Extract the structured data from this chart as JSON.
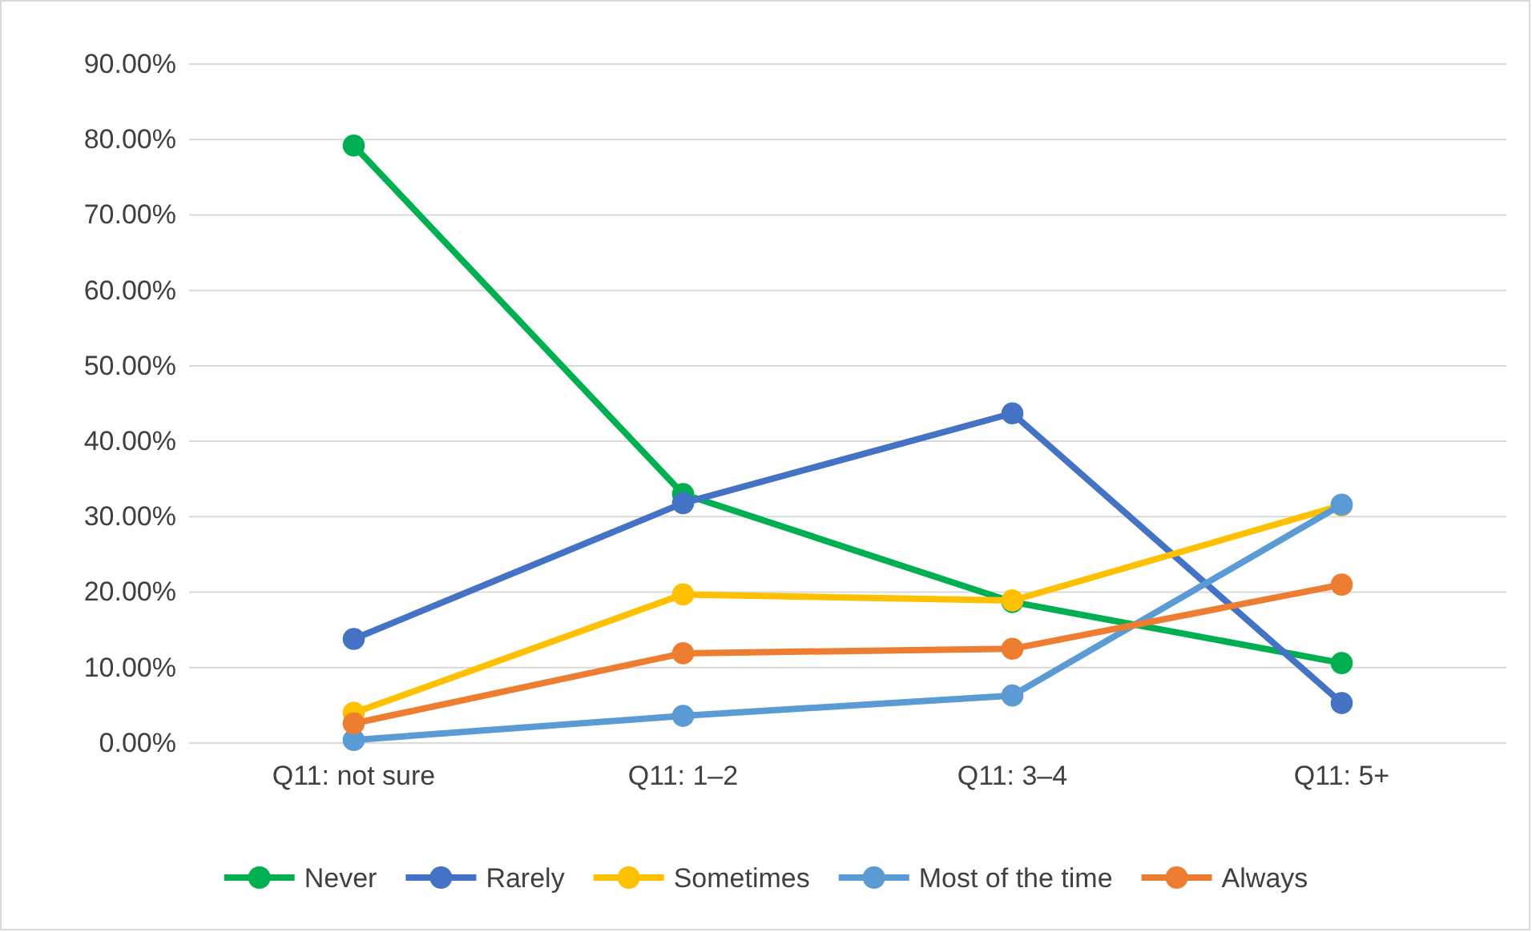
{
  "chart_data": {
    "type": "line",
    "categories": [
      "Q11: not sure",
      "Q11: 1–2",
      "Q11: 3–4",
      "Q11: 5+"
    ],
    "series": [
      {
        "name": "Never",
        "color": "#00b050",
        "values": [
          79.2,
          33,
          18.7,
          10.6
        ]
      },
      {
        "name": "Rarely",
        "color": "#4472c4",
        "values": [
          13.8,
          31.8,
          43.7,
          5.3
        ]
      },
      {
        "name": "Sometimes",
        "color": "#ffc000",
        "values": [
          4,
          19.7,
          18.9,
          31.5
        ]
      },
      {
        "name": "Most of the time",
        "color": "#5b9bd5",
        "values": [
          0.4,
          3.6,
          6.3,
          31.6
        ]
      },
      {
        "name": "Always",
        "color": "#ed7d31",
        "values": [
          2.6,
          11.9,
          12.5,
          21
        ]
      }
    ],
    "ylim": [
      0,
      90
    ],
    "yticks": [
      {
        "value": 0,
        "label": "0.00%"
      },
      {
        "value": 10,
        "label": "10.00%"
      },
      {
        "value": 20,
        "label": "20.00%"
      },
      {
        "value": 30,
        "label": "30.00%"
      },
      {
        "value": 40,
        "label": "40.00%"
      },
      {
        "value": 50,
        "label": "50.00%"
      },
      {
        "value": 60,
        "label": "60.00%"
      },
      {
        "value": 70,
        "label": "70.00%"
      },
      {
        "value": 80,
        "label": "80.00%"
      },
      {
        "value": 90,
        "label": "90.00%"
      }
    ],
    "grid": "y",
    "legend": "bottom",
    "marker": "circle",
    "line_style": "solid"
  }
}
